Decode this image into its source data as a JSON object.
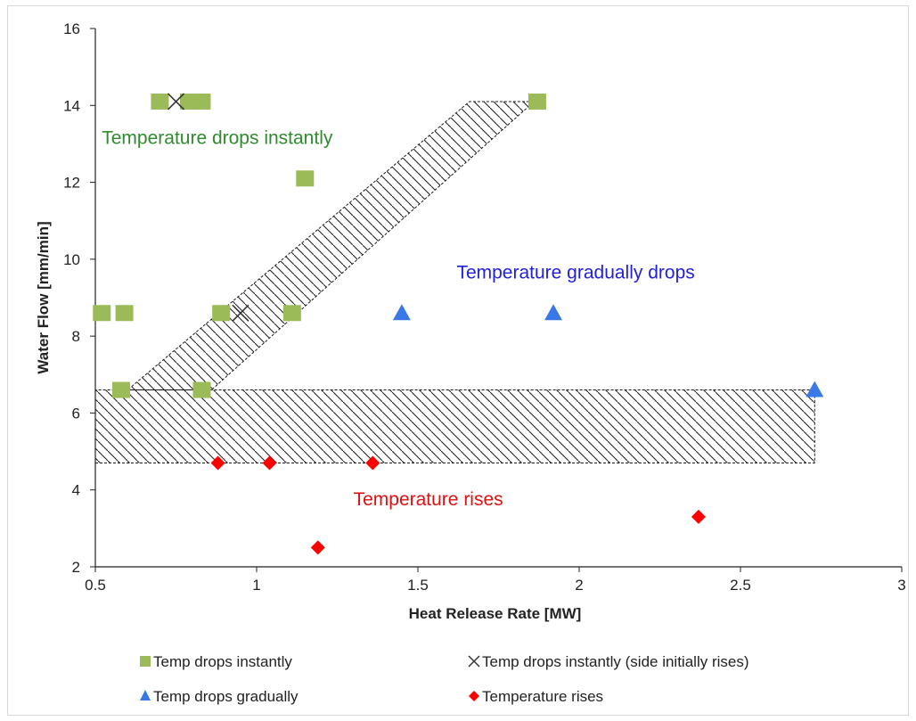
{
  "chart_data": {
    "type": "scatter",
    "xlabel": "Heat Release Rate [MW]",
    "ylabel": "Water Flow [mm/min]",
    "xlim": [
      0.5,
      3
    ],
    "ylim": [
      2,
      16
    ],
    "x_ticks": [
      "0.5",
      "1",
      "1.5",
      "2",
      "2.5",
      "3"
    ],
    "y_ticks": [
      "2",
      "4",
      "6",
      "8",
      "10",
      "12",
      "14",
      "16"
    ],
    "grid": false,
    "legend_position": "bottom",
    "series": [
      {
        "name": "Temp drops instantly",
        "marker": "square",
        "color": "#9bbb59",
        "points": [
          {
            "x": 0.7,
            "y": 14.1
          },
          {
            "x": 0.79,
            "y": 14.1
          },
          {
            "x": 0.83,
            "y": 14.1
          },
          {
            "x": 1.87,
            "y": 14.1
          },
          {
            "x": 1.15,
            "y": 12.1
          },
          {
            "x": 0.52,
            "y": 8.6
          },
          {
            "x": 0.59,
            "y": 8.6
          },
          {
            "x": 0.89,
            "y": 8.6
          },
          {
            "x": 1.11,
            "y": 8.6
          },
          {
            "x": 0.58,
            "y": 6.6
          },
          {
            "x": 0.83,
            "y": 6.6
          }
        ]
      },
      {
        "name": "Temp drops instantly (side initially rises)",
        "marker": "x",
        "color": "#333333",
        "points": [
          {
            "x": 0.75,
            "y": 14.1
          },
          {
            "x": 0.95,
            "y": 8.6
          }
        ]
      },
      {
        "name": "Temp drops gradually",
        "marker": "triangle",
        "color": "#3b78e7",
        "points": [
          {
            "x": 1.45,
            "y": 8.6
          },
          {
            "x": 1.92,
            "y": 8.6
          },
          {
            "x": 2.73,
            "y": 6.6
          }
        ]
      },
      {
        "name": "Temperature rises",
        "marker": "diamond",
        "color": "#ff0000",
        "points": [
          {
            "x": 0.88,
            "y": 4.7
          },
          {
            "x": 1.04,
            "y": 4.7
          },
          {
            "x": 1.36,
            "y": 4.7
          },
          {
            "x": 1.19,
            "y": 2.5
          },
          {
            "x": 2.37,
            "y": 3.3
          }
        ]
      }
    ],
    "hatched_regions": [
      {
        "name": "transition-band",
        "polygon": [
          [
            0.6,
            6.6
          ],
          [
            0.86,
            6.6
          ],
          [
            1.86,
            14.1
          ],
          [
            1.66,
            14.1
          ]
        ]
      },
      {
        "name": "lower-band",
        "polygon": [
          [
            0.5,
            4.7
          ],
          [
            2.73,
            4.7
          ],
          [
            2.73,
            6.6
          ],
          [
            0.5,
            6.6
          ]
        ]
      }
    ],
    "annotations": [
      {
        "text": "Temperature drops instantly",
        "x": 0.52,
        "y": 13.0,
        "color": "#2e8b2e"
      },
      {
        "text": "Temperature gradually drops",
        "x": 1.62,
        "y": 9.5,
        "color": "#1f1fe0"
      },
      {
        "text": "Temperature rises",
        "x": 1.3,
        "y": 3.6,
        "color": "#e01010"
      }
    ]
  }
}
